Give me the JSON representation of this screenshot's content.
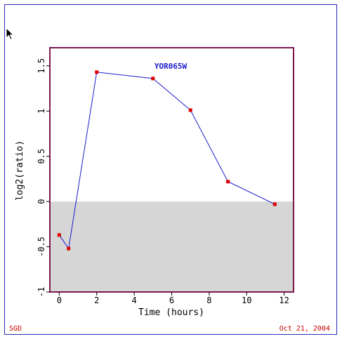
{
  "footer": {
    "source": "SGD",
    "date": "Oct 21, 2004"
  },
  "colors": {
    "frame": "#2a2ab8",
    "plot_border": "#7a1850",
    "series_line": "#1a1acc",
    "series_marker": "#dd0000",
    "negative_region": "#d6d6d6",
    "title": "#1a1acc",
    "footer_text": "#cc0000"
  },
  "icons": {
    "cursor": "arrow-cursor-icon"
  },
  "chart_data": {
    "type": "line",
    "title": "YOR065W",
    "xlabel": "Time (hours)",
    "ylabel": "log2(ratio)",
    "xlim": [
      -0.5,
      12.5
    ],
    "ylim": [
      -1,
      1.7
    ],
    "xticks": [
      0,
      2,
      4,
      6,
      8,
      10,
      12
    ],
    "xtick_labels": [
      "0",
      "2",
      "4",
      "6",
      "8",
      "10",
      "12"
    ],
    "yticks": [
      -1,
      -0.5,
      0,
      0.5,
      1,
      1.5
    ],
    "ytick_labels": [
      "-1",
      "-0.5",
      "0",
      "0.5",
      "1",
      "1.5"
    ],
    "negative_shading": true,
    "grid": false,
    "series": [
      {
        "x": [
          0,
          0.5,
          2,
          5,
          7,
          9,
          11.5
        ],
        "y": [
          -0.37,
          -0.52,
          1.43,
          1.36,
          1.01,
          0.22,
          -0.03
        ]
      }
    ]
  }
}
